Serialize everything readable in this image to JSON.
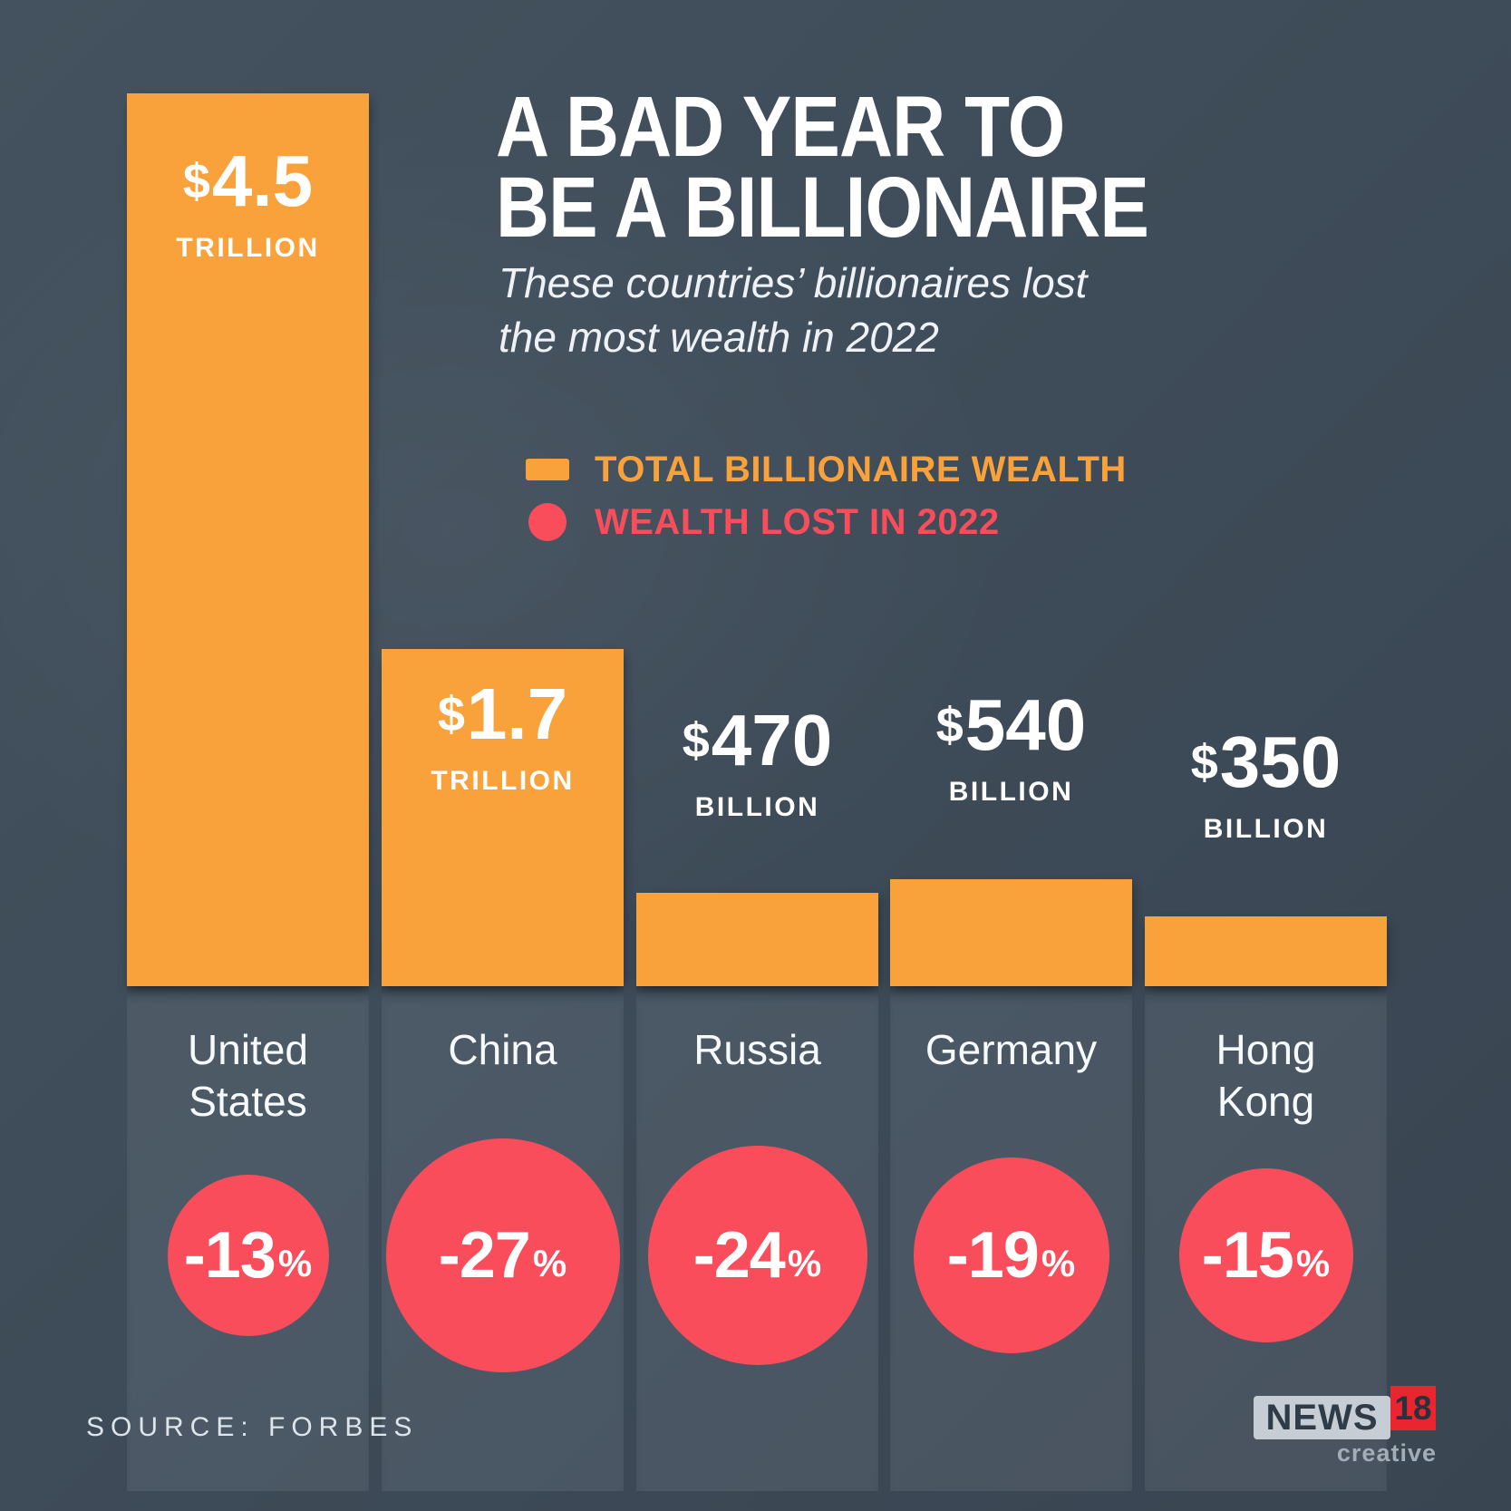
{
  "title": {
    "line1": "A BAD YEAR TO",
    "line2": "BE A BILLIONAIRE"
  },
  "subtitle": {
    "line1": "These countries’ billionaires lost",
    "line2": "the most wealth in 2022"
  },
  "legend": {
    "items": [
      {
        "label": "TOTAL BILLIONAIRE WEALTH",
        "swatch": "bar"
      },
      {
        "label": "WEALTH LOST IN 2022",
        "swatch": "circle"
      }
    ]
  },
  "source": {
    "label": "SOURCE: FORBES"
  },
  "logo": {
    "news": "NEWS",
    "eighteen": "18",
    "creative": "creative"
  },
  "colors": {
    "orange": "#F9A23C",
    "red": "#F94D5C",
    "background": "#3E4B58",
    "band": "rgba(203,216,228,0.10)",
    "logo_gray": "#C6CDD4",
    "logo_dark": "#2F3B47",
    "logo_red": "#E9252F"
  },
  "chart_data": {
    "type": "bar",
    "title": "A BAD YEAR TO BE A BILLIONAIRE",
    "subtitle": "These countries’ billionaires lost the most wealth in 2022",
    "source": "Forbes",
    "legend": [
      "Total billionaire wealth",
      "Wealth lost in 2022"
    ],
    "categories": [
      "United States",
      "China",
      "Russia",
      "Germany",
      "Hong Kong"
    ],
    "series": [
      {
        "name": "Total billionaire wealth (USD billions)",
        "values": [
          4500,
          1700,
          470,
          540,
          350
        ]
      },
      {
        "name": "Wealth lost in 2022 (%)",
        "values": [
          -13,
          -27,
          -24,
          -19,
          -15
        ]
      }
    ],
    "layout_hints": {
      "bars": "orange, proportional height",
      "losses": "red circles, area ~ percentage",
      "grid": false
    },
    "countries": [
      {
        "name": "United States",
        "name_lines": [
          "United",
          "States"
        ],
        "wealth_billion": 4500,
        "wealth": {
          "symbol": "$",
          "amount": "4.5",
          "unit": "TRILLION"
        },
        "loss": {
          "pct": -13,
          "display": "-13",
          "percent_sign": "%"
        }
      },
      {
        "name": "China",
        "name_lines": [
          "China"
        ],
        "wealth_billion": 1700,
        "wealth": {
          "symbol": "$",
          "amount": "1.7",
          "unit": "TRILLION"
        },
        "loss": {
          "pct": -27,
          "display": "-27",
          "percent_sign": "%"
        }
      },
      {
        "name": "Russia",
        "name_lines": [
          "Russia"
        ],
        "wealth_billion": 470,
        "wealth": {
          "symbol": "$",
          "amount": "470",
          "unit": "BILLION"
        },
        "loss": {
          "pct": -24,
          "display": "-24",
          "percent_sign": "%"
        }
      },
      {
        "name": "Germany",
        "name_lines": [
          "Germany"
        ],
        "wealth_billion": 540,
        "wealth": {
          "symbol": "$",
          "amount": "540",
          "unit": "BILLION"
        },
        "loss": {
          "pct": -19,
          "display": "-19",
          "percent_sign": "%"
        }
      },
      {
        "name": "Hong Kong",
        "name_lines": [
          "Hong",
          "Kong"
        ],
        "wealth_billion": 350,
        "wealth": {
          "symbol": "$",
          "amount": "350",
          "unit": "BILLION"
        },
        "loss": {
          "pct": -15,
          "display": "-15",
          "percent_sign": "%"
        }
      }
    ]
  }
}
